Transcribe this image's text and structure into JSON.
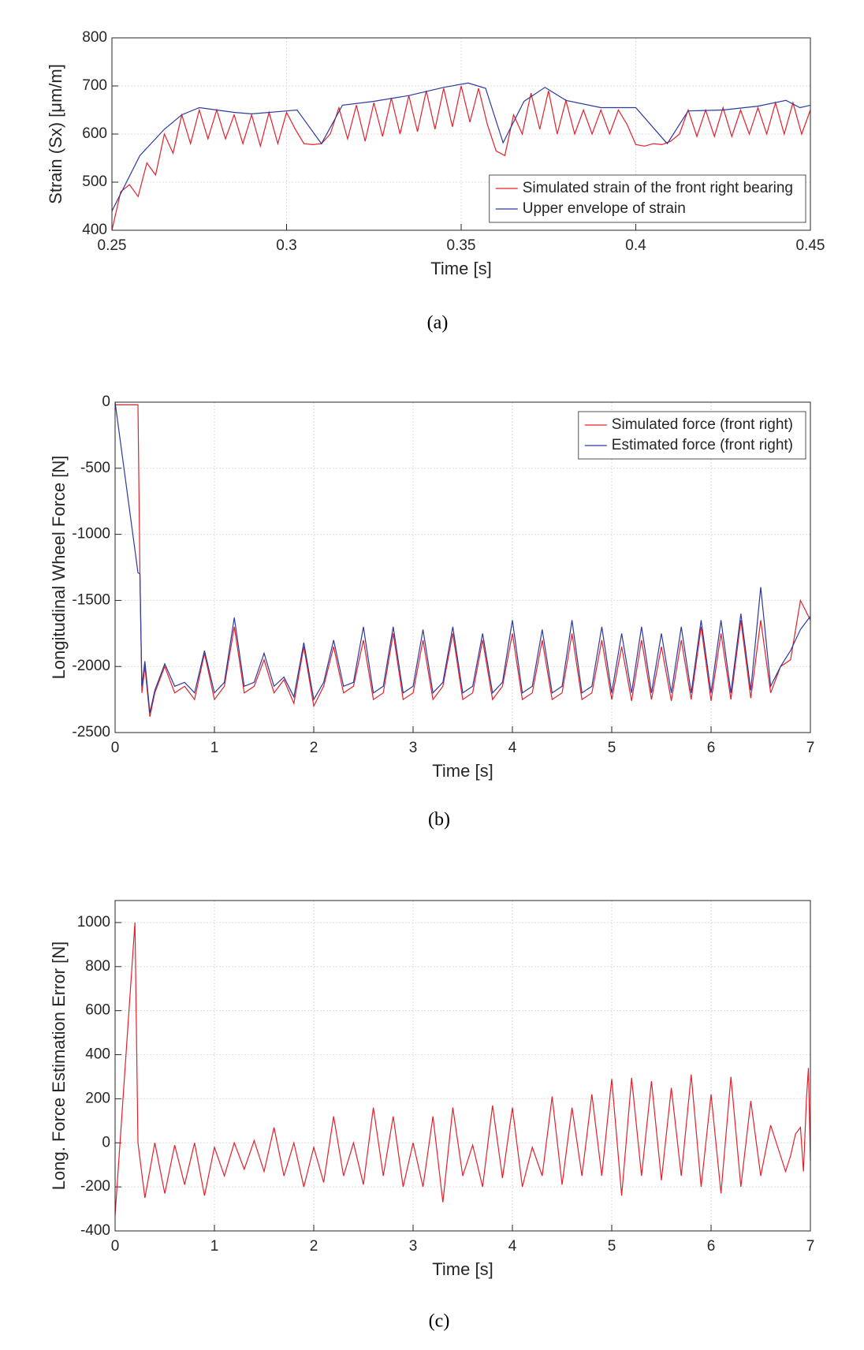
{
  "chart_data": [
    {
      "type": "line",
      "caption": "(a)",
      "xlabel": "Time [s]",
      "ylabel": "Strain (Sx) [μm/m]",
      "xlim": [
        0.25,
        0.45
      ],
      "xticks": [
        0.25,
        0.3,
        0.35,
        0.4,
        0.45
      ],
      "ylim": [
        400,
        800
      ],
      "yticks": [
        400,
        500,
        600,
        700,
        800
      ],
      "grid": true,
      "legend": "lower right",
      "series": [
        {
          "name": "Simulated strain of the front right bearing",
          "color": "#e3202b",
          "x": [
            0.25,
            0.2525,
            0.255,
            0.2575,
            0.26,
            0.2625,
            0.265,
            0.2675,
            0.27,
            0.2725,
            0.275,
            0.2775,
            0.28,
            0.2825,
            0.285,
            0.2875,
            0.29,
            0.2925,
            0.295,
            0.2975,
            0.3,
            0.3025,
            0.305,
            0.3075,
            0.31,
            0.3125,
            0.315,
            0.3175,
            0.32,
            0.3225,
            0.325,
            0.3275,
            0.33,
            0.3325,
            0.335,
            0.3375,
            0.34,
            0.3425,
            0.345,
            0.3475,
            0.35,
            0.3525,
            0.355,
            0.3575,
            0.36,
            0.3625,
            0.365,
            0.3675,
            0.37,
            0.3725,
            0.375,
            0.3775,
            0.38,
            0.3825,
            0.385,
            0.3875,
            0.39,
            0.3925,
            0.395,
            0.3975,
            0.4,
            0.4025,
            0.405,
            0.4075,
            0.41,
            0.4125,
            0.415,
            0.4175,
            0.42,
            0.4225,
            0.425,
            0.4275,
            0.43,
            0.4325,
            0.435,
            0.4375,
            0.44,
            0.4425,
            0.445,
            0.4475,
            0.45
          ],
          "values": [
            400,
            480,
            495,
            470,
            540,
            515,
            600,
            560,
            640,
            580,
            650,
            590,
            650,
            590,
            640,
            580,
            640,
            575,
            645,
            580,
            645,
            610,
            580,
            578,
            580,
            600,
            655,
            590,
            660,
            585,
            665,
            595,
            675,
            600,
            680,
            605,
            690,
            610,
            695,
            615,
            700,
            625,
            695,
            620,
            565,
            555,
            640,
            600,
            685,
            610,
            690,
            600,
            670,
            600,
            650,
            600,
            650,
            600,
            650,
            620,
            578,
            575,
            580,
            578,
            585,
            600,
            650,
            595,
            650,
            595,
            655,
            595,
            650,
            600,
            655,
            600,
            665,
            600,
            665,
            600,
            650
          ]
        },
        {
          "name": "Upper envelope of strain",
          "color": "#2b3a9e",
          "x": [
            0.25,
            0.258,
            0.265,
            0.27,
            0.275,
            0.28,
            0.285,
            0.29,
            0.3,
            0.303,
            0.31,
            0.316,
            0.325,
            0.335,
            0.345,
            0.352,
            0.357,
            0.362,
            0.368,
            0.374,
            0.38,
            0.39,
            0.4,
            0.409,
            0.415,
            0.425,
            0.435,
            0.443,
            0.447,
            0.45
          ],
          "values": [
            440,
            555,
            610,
            640,
            655,
            650,
            645,
            642,
            648,
            650,
            580,
            660,
            668,
            680,
            697,
            706,
            695,
            582,
            668,
            697,
            670,
            655,
            655,
            580,
            648,
            650,
            658,
            670,
            655,
            660
          ]
        }
      ]
    },
    {
      "type": "line",
      "caption": "(b)",
      "xlabel": "Time [s]",
      "ylabel": "Longitudinal Wheel Force [N]",
      "xlim": [
        0,
        7
      ],
      "xticks": [
        0,
        1,
        2,
        3,
        4,
        5,
        6,
        7
      ],
      "ylim": [
        -2500,
        0
      ],
      "yticks": [
        -2500,
        -2000,
        -1500,
        -1000,
        -500,
        0
      ],
      "grid": true,
      "legend": "upper right",
      "series": [
        {
          "name": "Simulated force (front right)",
          "color": "#e3202b",
          "x": [
            0,
            0.05,
            0.1,
            0.15,
            0.2,
            0.23,
            0.25,
            0.27,
            0.3,
            0.35,
            0.4,
            0.5,
            0.6,
            0.7,
            0.8,
            0.9,
            1,
            1.1,
            1.2,
            1.3,
            1.4,
            1.5,
            1.6,
            1.7,
            1.8,
            1.9,
            2,
            2.1,
            2.2,
            2.3,
            2.4,
            2.5,
            2.6,
            2.7,
            2.8,
            2.9,
            3,
            3.1,
            3.2,
            3.3,
            3.4,
            3.5,
            3.6,
            3.7,
            3.8,
            3.9,
            4,
            4.1,
            4.2,
            4.3,
            4.4,
            4.5,
            4.6,
            4.7,
            4.8,
            4.9,
            5,
            5.1,
            5.2,
            5.3,
            5.4,
            5.5,
            5.6,
            5.7,
            5.8,
            5.9,
            6,
            6.1,
            6.2,
            6.3,
            6.4,
            6.5,
            6.6,
            6.7,
            6.8,
            6.9,
            7
          ],
          "values": [
            -20,
            -20,
            -20,
            -20,
            -20,
            -20,
            -1300,
            -2200,
            -2000,
            -2380,
            -2200,
            -2000,
            -2200,
            -2150,
            -2250,
            -1900,
            -2250,
            -2150,
            -1700,
            -2200,
            -2150,
            -1950,
            -2200,
            -2100,
            -2280,
            -1850,
            -2300,
            -2150,
            -1850,
            -2200,
            -2150,
            -1800,
            -2250,
            -2200,
            -1750,
            -2250,
            -2200,
            -1800,
            -2250,
            -2150,
            -1750,
            -2250,
            -2200,
            -1800,
            -2250,
            -2150,
            -1750,
            -2250,
            -2200,
            -1800,
            -2250,
            -2200,
            -1750,
            -2250,
            -2200,
            -1800,
            -2250,
            -1850,
            -2260,
            -1800,
            -2250,
            -1850,
            -2260,
            -1800,
            -2250,
            -1700,
            -2260,
            -1750,
            -2250,
            -1650,
            -2240,
            -1650,
            -2200,
            -2000,
            -1950,
            -1500,
            -1650
          ]
        },
        {
          "name": "Estimated force (front right)",
          "color": "#2b3a9e",
          "x": [
            0,
            0.05,
            0.1,
            0.15,
            0.2,
            0.23,
            0.25,
            0.27,
            0.3,
            0.35,
            0.4,
            0.5,
            0.6,
            0.7,
            0.8,
            0.9,
            1,
            1.1,
            1.2,
            1.3,
            1.4,
            1.5,
            1.6,
            1.7,
            1.8,
            1.9,
            2,
            2.1,
            2.2,
            2.3,
            2.4,
            2.5,
            2.6,
            2.7,
            2.8,
            2.9,
            3,
            3.1,
            3.2,
            3.3,
            3.4,
            3.5,
            3.6,
            3.7,
            3.8,
            3.9,
            4,
            4.1,
            4.2,
            4.3,
            4.4,
            4.5,
            4.6,
            4.7,
            4.8,
            4.9,
            5,
            5.1,
            5.2,
            5.3,
            5.4,
            5.5,
            5.6,
            5.7,
            5.8,
            5.9,
            6,
            6.1,
            6.2,
            6.3,
            6.4,
            6.5,
            6.6,
            6.7,
            6.8,
            6.9,
            7
          ],
          "values": [
            0,
            -280,
            -560,
            -840,
            -1120,
            -1290,
            -1300,
            -2150,
            -1960,
            -2350,
            -2180,
            -1980,
            -2150,
            -2120,
            -2200,
            -1880,
            -2200,
            -2120,
            -1630,
            -2150,
            -2120,
            -1900,
            -2150,
            -2080,
            -2230,
            -1820,
            -2250,
            -2120,
            -1800,
            -2150,
            -2120,
            -1700,
            -2200,
            -2150,
            -1700,
            -2200,
            -2150,
            -1720,
            -2200,
            -2120,
            -1700,
            -2200,
            -2150,
            -1750,
            -2200,
            -2120,
            -1650,
            -2200,
            -2150,
            -1720,
            -2200,
            -2150,
            -1650,
            -2200,
            -2150,
            -1700,
            -2200,
            -1750,
            -2200,
            -1700,
            -2200,
            -1750,
            -2200,
            -1700,
            -2200,
            -1650,
            -2200,
            -1650,
            -2200,
            -1600,
            -2180,
            -1400,
            -2150,
            -2000,
            -1880,
            -1720,
            -1620
          ]
        }
      ]
    },
    {
      "type": "line",
      "caption": "(c)",
      "xlabel": "Time [s]",
      "ylabel": "Long. Force Estimation Error [N]",
      "xlim": [
        0,
        7
      ],
      "xticks": [
        0,
        1,
        2,
        3,
        4,
        5,
        6,
        7
      ],
      "ylim": [
        -400,
        1100
      ],
      "yticks": [
        -400,
        -200,
        0,
        200,
        400,
        600,
        800,
        1000
      ],
      "grid": true,
      "series": [
        {
          "color": "#e3202b",
          "x": [
            0,
            0.2,
            0.23,
            0.3,
            0.4,
            0.5,
            0.6,
            0.7,
            0.8,
            0.9,
            1,
            1.1,
            1.2,
            1.3,
            1.4,
            1.5,
            1.6,
            1.7,
            1.8,
            1.9,
            2,
            2.1,
            2.2,
            2.3,
            2.4,
            2.5,
            2.6,
            2.7,
            2.8,
            2.9,
            3,
            3.1,
            3.2,
            3.3,
            3.4,
            3.5,
            3.6,
            3.7,
            3.8,
            3.9,
            4,
            4.1,
            4.2,
            4.3,
            4.4,
            4.5,
            4.6,
            4.7,
            4.8,
            4.9,
            5,
            5.1,
            5.2,
            5.3,
            5.4,
            5.5,
            5.6,
            5.7,
            5.8,
            5.9,
            6,
            6.1,
            6.2,
            6.3,
            6.4,
            6.5,
            6.6,
            6.7,
            6.75,
            6.8,
            6.85,
            6.9,
            6.93,
            6.96,
            6.98,
            7
          ],
          "values": [
            -330,
            1000,
            0,
            -250,
            0,
            -230,
            -10,
            -190,
            0,
            -240,
            -20,
            -150,
            0,
            -120,
            10,
            -130,
            70,
            -150,
            0,
            -200,
            -20,
            -180,
            120,
            -150,
            0,
            -190,
            160,
            -150,
            120,
            -200,
            0,
            -200,
            120,
            -270,
            160,
            -150,
            -10,
            -200,
            170,
            -160,
            160,
            -200,
            -20,
            -150,
            210,
            -190,
            160,
            -150,
            220,
            -150,
            290,
            -240,
            295,
            -150,
            280,
            -170,
            250,
            -150,
            310,
            -200,
            220,
            -230,
            300,
            -200,
            190,
            -150,
            80,
            -60,
            -130,
            -60,
            40,
            70,
            -130,
            200,
            340,
            -80
          ]
        }
      ]
    }
  ]
}
